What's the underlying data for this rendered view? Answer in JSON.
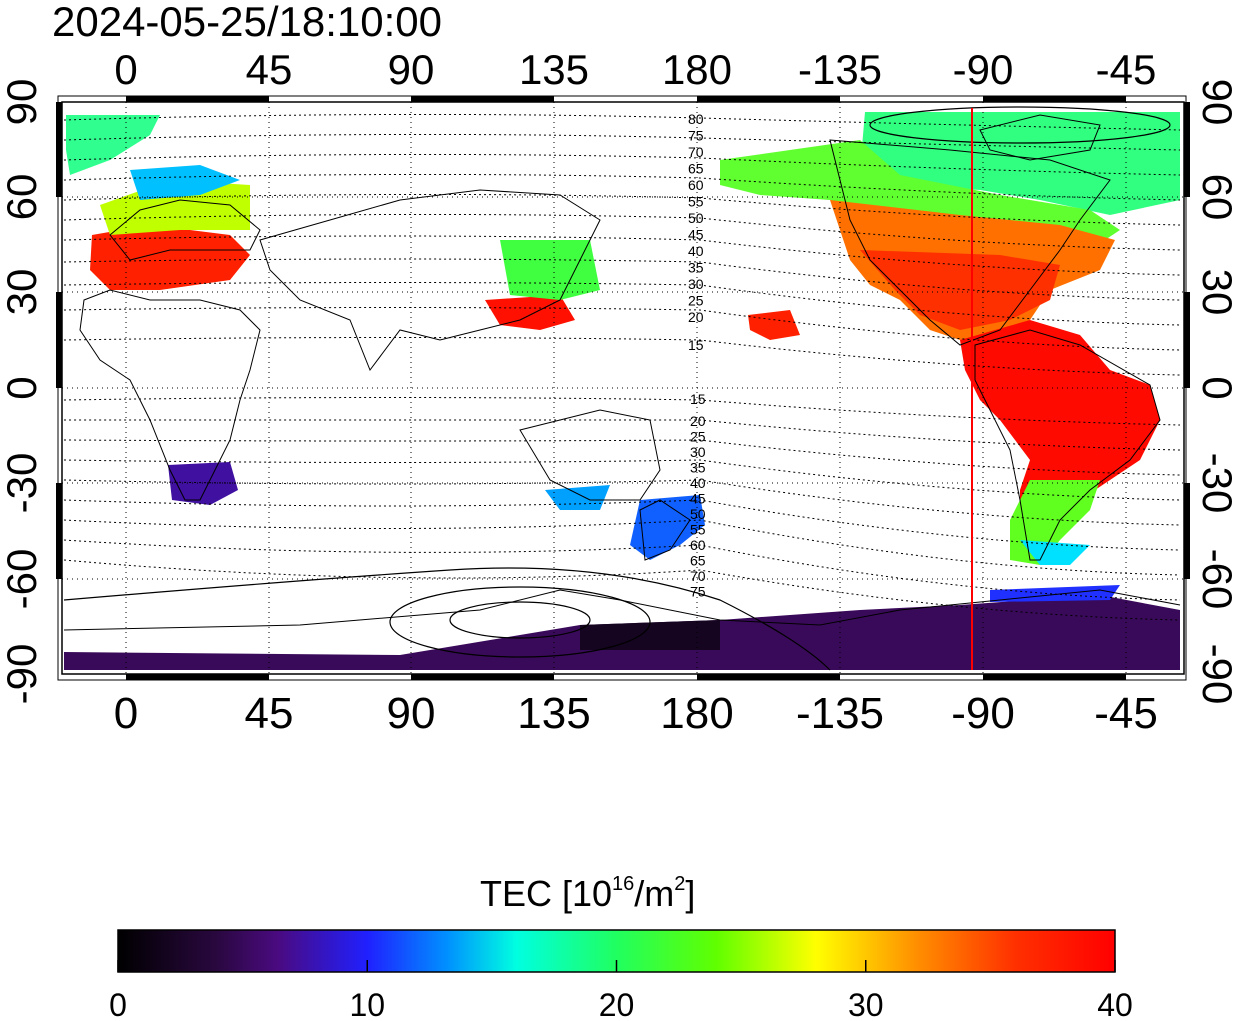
{
  "timestamp": "2024-05-25/18:10:00",
  "colorbar": {
    "title_main": "TEC  [10",
    "title_exp1": "16",
    "title_mid": "/m",
    "title_exp2": "2",
    "title_end": "]",
    "ticks": [
      "0",
      "10",
      "20",
      "30",
      "40"
    ],
    "range": [
      0,
      40
    ],
    "colors": [
      "#000000",
      "#3a0a5a",
      "#5a0aa0",
      "#2020ff",
      "#00a0ff",
      "#00ffe0",
      "#20ff80",
      "#40ff00",
      "#c0ff00",
      "#ffff00",
      "#ff8000",
      "#ff2000",
      "#ff0000"
    ]
  },
  "map": {
    "lon_tick_labels": [
      "0",
      "45",
      "90",
      "135",
      "180",
      "-135",
      "-90",
      "-45"
    ],
    "lat_tick_labels": [
      "90",
      "60",
      "30",
      "0",
      "-30",
      "-60",
      "-90"
    ],
    "marker_longitude_label": "-90",
    "marker_color": "#ff0000",
    "magnetic_latitude_labels_north": [
      "80",
      "75",
      "70",
      "65",
      "60",
      "55",
      "50",
      "45",
      "40",
      "35",
      "30",
      "25",
      "20",
      "15"
    ],
    "magnetic_latitude_labels_south": [
      "15",
      "20",
      "25",
      "30",
      "35",
      "40",
      "45",
      "50",
      "55",
      "60",
      "65",
      "70",
      "75"
    ]
  },
  "tec_regions": [
    {
      "name": "europe-mediterranean",
      "color": "#ff2000"
    },
    {
      "name": "north-america",
      "color": "#ff4000"
    },
    {
      "name": "south-america",
      "color": "#ff0000"
    },
    {
      "name": "japan",
      "color": "#ff1000"
    },
    {
      "name": "antarctica",
      "color": "#3a0a5a"
    },
    {
      "name": "arctic",
      "color": "#30ff70"
    },
    {
      "name": "southern-africa",
      "color": "#4010a0"
    },
    {
      "name": "new-zealand",
      "color": "#1060ff"
    }
  ]
}
